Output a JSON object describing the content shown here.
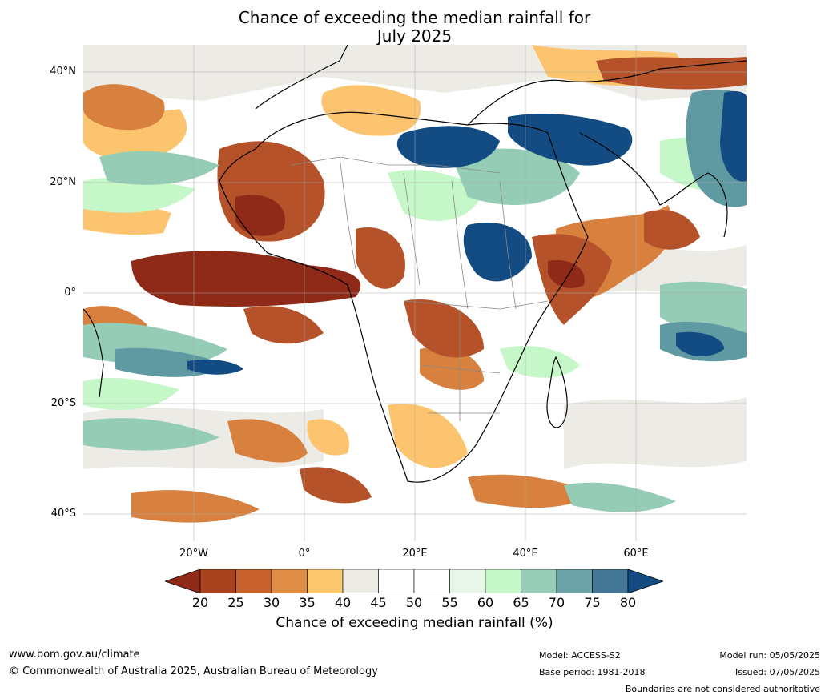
{
  "title_line1": "Chance of exceeding the median rainfall for",
  "title_line2": "July 2025",
  "map": {
    "lon_range": [
      -40,
      80
    ],
    "lat_range": [
      -45,
      45
    ],
    "lat_labels": [
      "40°N",
      "20°N",
      "0°",
      "20°S",
      "40°S"
    ],
    "lon_labels": [
      "20°W",
      "0°",
      "20°E",
      "40°E",
      "60°E"
    ],
    "colors": {
      "very_dry": "#8e2a17",
      "dry": "#b5522a",
      "moderately_dry": "#d8813f",
      "slightly_dry": "#fcc46e",
      "near_median": "#edebe6",
      "neutral": "#ffffff",
      "slightly_wet": "#c6f7c8",
      "moderately_wet": "#94ccb5",
      "wet": "#5f9aa3",
      "very_wet": "#134c82"
    }
  },
  "colorbar": {
    "ticks": [
      "20",
      "25",
      "30",
      "35",
      "40",
      "45",
      "50",
      "55",
      "60",
      "65",
      "70",
      "75",
      "80"
    ],
    "colors": [
      "#8e2a17",
      "#a8431f",
      "#c8632e",
      "#e08e45",
      "#fdc86d",
      "#edebe6",
      "#ffffff",
      "#ffffff",
      "#e8f6ea",
      "#c6f7c8",
      "#97ccb6",
      "#6aa2a5",
      "#447695",
      "#134c82"
    ],
    "label": "Chance of exceeding median rainfall (%)"
  },
  "footer": {
    "website": "www.bom.gov.au/climate",
    "copyright": "© Commonwealth of Australia 2025, Australian Bureau of Meteorology",
    "model": "Model: ACCESS-S2",
    "base_period": "Base period: 1981-2018",
    "model_run": "Model run: 05/05/2025",
    "issued": "Issued: 07/05/2025",
    "disclaimer": "Boundaries are not considered authoritative"
  }
}
